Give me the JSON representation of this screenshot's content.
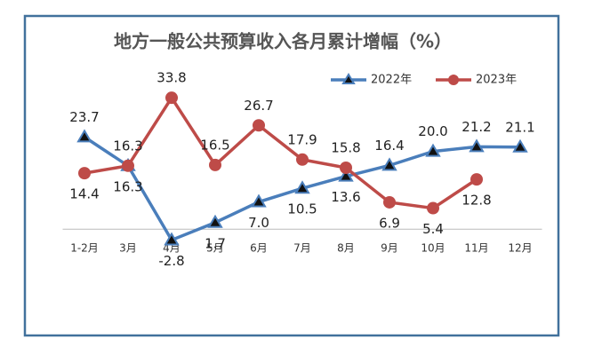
{
  "chart_data": {
    "type": "line",
    "title": "地方一般公共预算收入各月累计增幅（%）",
    "categories": [
      "1-2月",
      "3月",
      "4月",
      "5月",
      "6月",
      "7月",
      "8月",
      "9月",
      "10月",
      "11月",
      "12月"
    ],
    "series": [
      {
        "name": "2022年",
        "color": "#4a7ebb",
        "marker": "triangle",
        "values": [
          23.7,
          16.3,
          -2.8,
          1.7,
          7.0,
          10.5,
          13.6,
          16.4,
          20.0,
          21.2,
          21.1
        ],
        "value_labels": [
          "23.7",
          "16.3",
          "-2.8",
          "1.7",
          "7.0",
          "10.5",
          "13.6",
          "16.4",
          "20.0",
          "21.2",
          "21.1"
        ]
      },
      {
        "name": "2023年",
        "color": "#be4b48",
        "marker": "circle",
        "values": [
          14.4,
          16.3,
          33.8,
          16.5,
          26.7,
          17.9,
          15.8,
          6.9,
          5.4,
          12.8,
          null
        ],
        "value_labels": [
          "14.4",
          "16.3",
          "33.8",
          "16.5",
          "26.7",
          "17.9",
          "15.8",
          "6.9",
          "5.4",
          "12.8",
          null
        ]
      }
    ],
    "ylim": [
      -10,
      40
    ],
    "legend": "top-right"
  }
}
